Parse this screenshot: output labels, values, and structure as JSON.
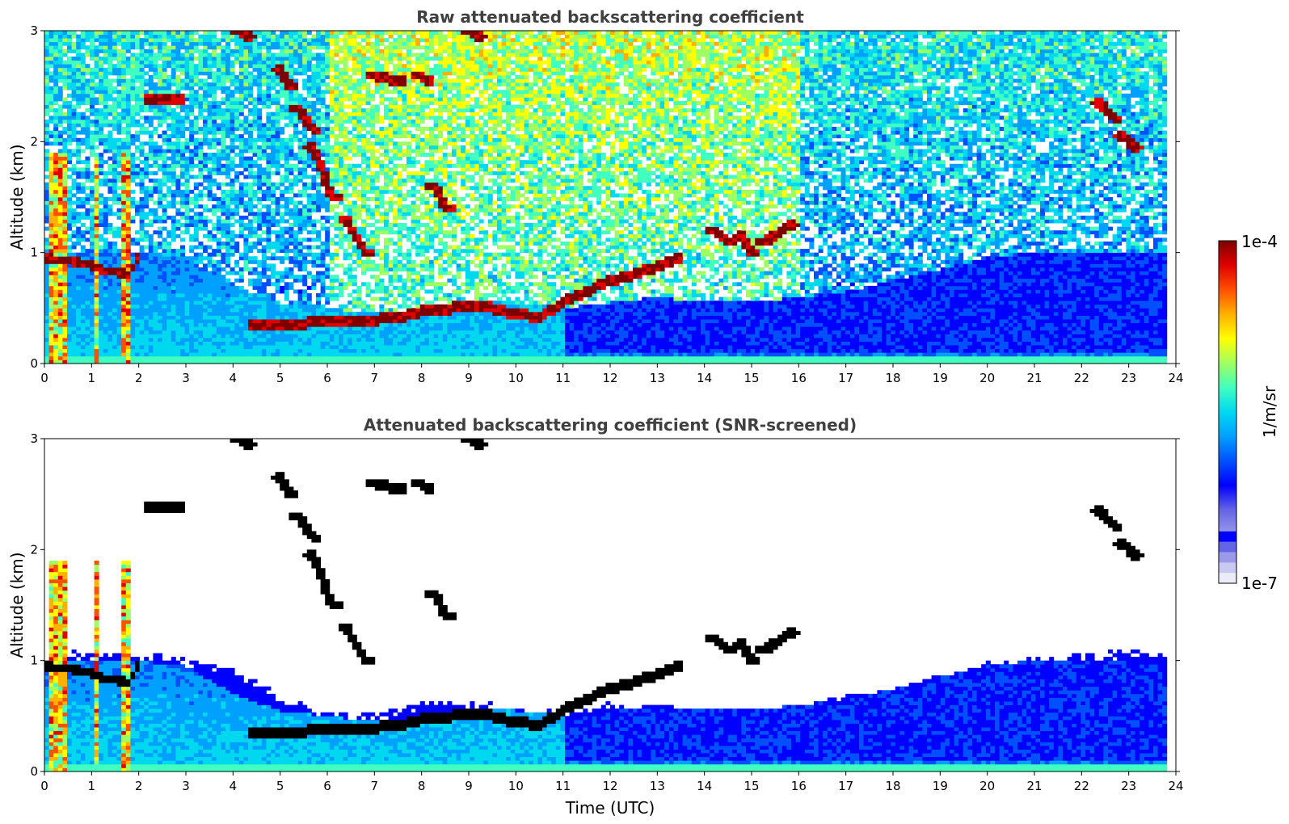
{
  "chart_data": [
    {
      "type": "heatmap",
      "title": "Raw attenuated backscattering coefficient",
      "xlabel": "",
      "ylabel": "Altitude (km)",
      "xlim": [
        0,
        24
      ],
      "ylim": [
        0,
        3
      ],
      "x_ticks": [
        "0",
        "1",
        "2",
        "3",
        "4",
        "5",
        "6",
        "7",
        "8",
        "9",
        "10",
        "11",
        "12",
        "13",
        "14",
        "15",
        "16",
        "17",
        "18",
        "19",
        "20",
        "21",
        "22",
        "23",
        "24"
      ],
      "y_ticks": [
        "0",
        "1",
        "2",
        "3"
      ],
      "screened": false,
      "features": {
        "boundary_layer_top_km": [
          [
            0,
            1.0
          ],
          [
            2,
            1.0
          ],
          [
            3,
            0.95
          ],
          [
            4,
            0.7
          ],
          [
            5,
            0.55
          ],
          [
            6,
            0.5
          ],
          [
            7,
            0.45
          ],
          [
            8,
            0.5
          ],
          [
            9,
            0.55
          ],
          [
            10,
            0.55
          ],
          [
            11,
            0.5
          ],
          [
            12,
            0.55
          ],
          [
            13,
            0.6
          ],
          [
            14,
            0.55
          ],
          [
            15,
            0.55
          ],
          [
            16,
            0.6
          ],
          [
            17,
            0.65
          ],
          [
            18,
            0.75
          ],
          [
            19,
            0.85
          ],
          [
            20,
            0.95
          ],
          [
            21,
            1.0
          ],
          [
            22,
            1.0
          ],
          [
            23,
            1.0
          ],
          [
            23.8,
            1.0
          ]
        ],
        "cloud_layer_km": [
          [
            4.3,
            0.35
          ],
          [
            5,
            0.35
          ],
          [
            6,
            0.38
          ],
          [
            6.8,
            0.38
          ],
          [
            7.5,
            0.42
          ],
          [
            8,
            0.47
          ],
          [
            9,
            0.52
          ],
          [
            9.5,
            0.5
          ],
          [
            10,
            0.45
          ],
          [
            10.5,
            0.42
          ],
          [
            11,
            0.55
          ],
          [
            11.5,
            0.65
          ],
          [
            12,
            0.75
          ],
          [
            12.5,
            0.8
          ],
          [
            13,
            0.88
          ],
          [
            13.5,
            0.95
          ]
        ],
        "high_cloud_segments_km": [
          [
            [
              4.1,
              3.0
            ],
            [
              4.3,
              2.95
            ]
          ],
          [
            [
              5.0,
              2.65
            ],
            [
              5.2,
              2.5
            ]
          ],
          [
            [
              5.4,
              2.3
            ],
            [
              5.7,
              2.1
            ]
          ],
          [
            [
              5.7,
              1.95
            ],
            [
              6.1,
              1.5
            ]
          ],
          [
            [
              6.4,
              1.3
            ],
            [
              6.8,
              1.0
            ]
          ],
          [
            [
              7.0,
              2.6
            ],
            [
              7.5,
              2.55
            ]
          ],
          [
            [
              8.0,
              2.6
            ],
            [
              8.1,
              2.55
            ]
          ],
          [
            [
              8.3,
              1.6
            ],
            [
              8.5,
              1.4
            ]
          ],
          [
            [
              9.0,
              3.0
            ],
            [
              9.2,
              2.95
            ]
          ],
          [
            [
              14.2,
              1.2
            ],
            [
              14.5,
              1.1
            ]
          ],
          [
            [
              14.8,
              1.15
            ],
            [
              15.0,
              1.0
            ]
          ],
          [
            [
              15.3,
              1.1
            ],
            [
              15.8,
              1.25
            ]
          ],
          [
            [
              22.4,
              2.35
            ],
            [
              22.7,
              2.2
            ]
          ],
          [
            [
              22.9,
              2.05
            ],
            [
              23.1,
              1.95
            ]
          ]
        ],
        "low_cloud_km": [
          [
            0.0,
            0.9
          ],
          [
            0.3,
            0.95
          ],
          [
            0.7,
            0.92
          ],
          [
            1.2,
            0.85
          ],
          [
            1.6,
            0.8
          ],
          [
            2.0,
            0.98
          ],
          [
            2.6,
            0.98
          ],
          [
            2.1,
            2.4
          ],
          [
            3.0,
            2.4
          ]
        ],
        "precipitation_columns_utc": [
          [
            0.05,
            0.5
          ],
          [
            1.05,
            1.2
          ],
          [
            1.6,
            1.85
          ]
        ]
      }
    },
    {
      "type": "heatmap",
      "title": "Attenuated backscattering coefficient (SNR-screened)",
      "xlabel": "Time (UTC)",
      "ylabel": "Altitude (km)",
      "xlim": [
        0,
        24
      ],
      "ylim": [
        0,
        3
      ],
      "x_ticks": [
        "0",
        "1",
        "2",
        "3",
        "4",
        "5",
        "6",
        "7",
        "8",
        "9",
        "10",
        "11",
        "12",
        "13",
        "14",
        "15",
        "16",
        "17",
        "18",
        "19",
        "20",
        "21",
        "22",
        "23",
        "24"
      ],
      "y_ticks": [
        "0",
        "1",
        "2",
        "3"
      ],
      "screened": true,
      "features": {
        "signal_top_km": [
          [
            0,
            1.05
          ],
          [
            2,
            1.05
          ],
          [
            3,
            0.98
          ],
          [
            4,
            0.9
          ],
          [
            4.5,
            0.8
          ],
          [
            5,
            0.65
          ],
          [
            6,
            0.52
          ],
          [
            7,
            0.48
          ],
          [
            7.5,
            0.55
          ],
          [
            8,
            0.6
          ],
          [
            9,
            0.62
          ],
          [
            10,
            0.55
          ],
          [
            11,
            0.5
          ],
          [
            11.5,
            0.55
          ],
          [
            12,
            0.6
          ],
          [
            13,
            0.45
          ],
          [
            14,
            0.45
          ],
          [
            15,
            0.5
          ],
          [
            16,
            0.55
          ],
          [
            17,
            0.65
          ],
          [
            18,
            0.7
          ],
          [
            19,
            0.85
          ],
          [
            20,
            0.95
          ],
          [
            21,
            1.0
          ],
          [
            22,
            1.05
          ],
          [
            23,
            1.05
          ],
          [
            23.8,
            1.05
          ]
        ]
      }
    }
  ],
  "colorbar": {
    "label": "1/m/sr",
    "max_label": "1e-4",
    "min_label": "1e-7",
    "vmin": 1e-07,
    "vmax": 0.0001,
    "scale": "log",
    "colormap": "jet",
    "colors": [
      "#ececf8",
      "#c8c8f0",
      "#9a9ae8",
      "#6464e6",
      "#0000ff",
      "#0050ff",
      "#00a0ff",
      "#00d8f0",
      "#40ffc0",
      "#a0ff60",
      "#ffff00",
      "#ffb000",
      "#ff5000",
      "#e00000",
      "#7f0000"
    ]
  }
}
